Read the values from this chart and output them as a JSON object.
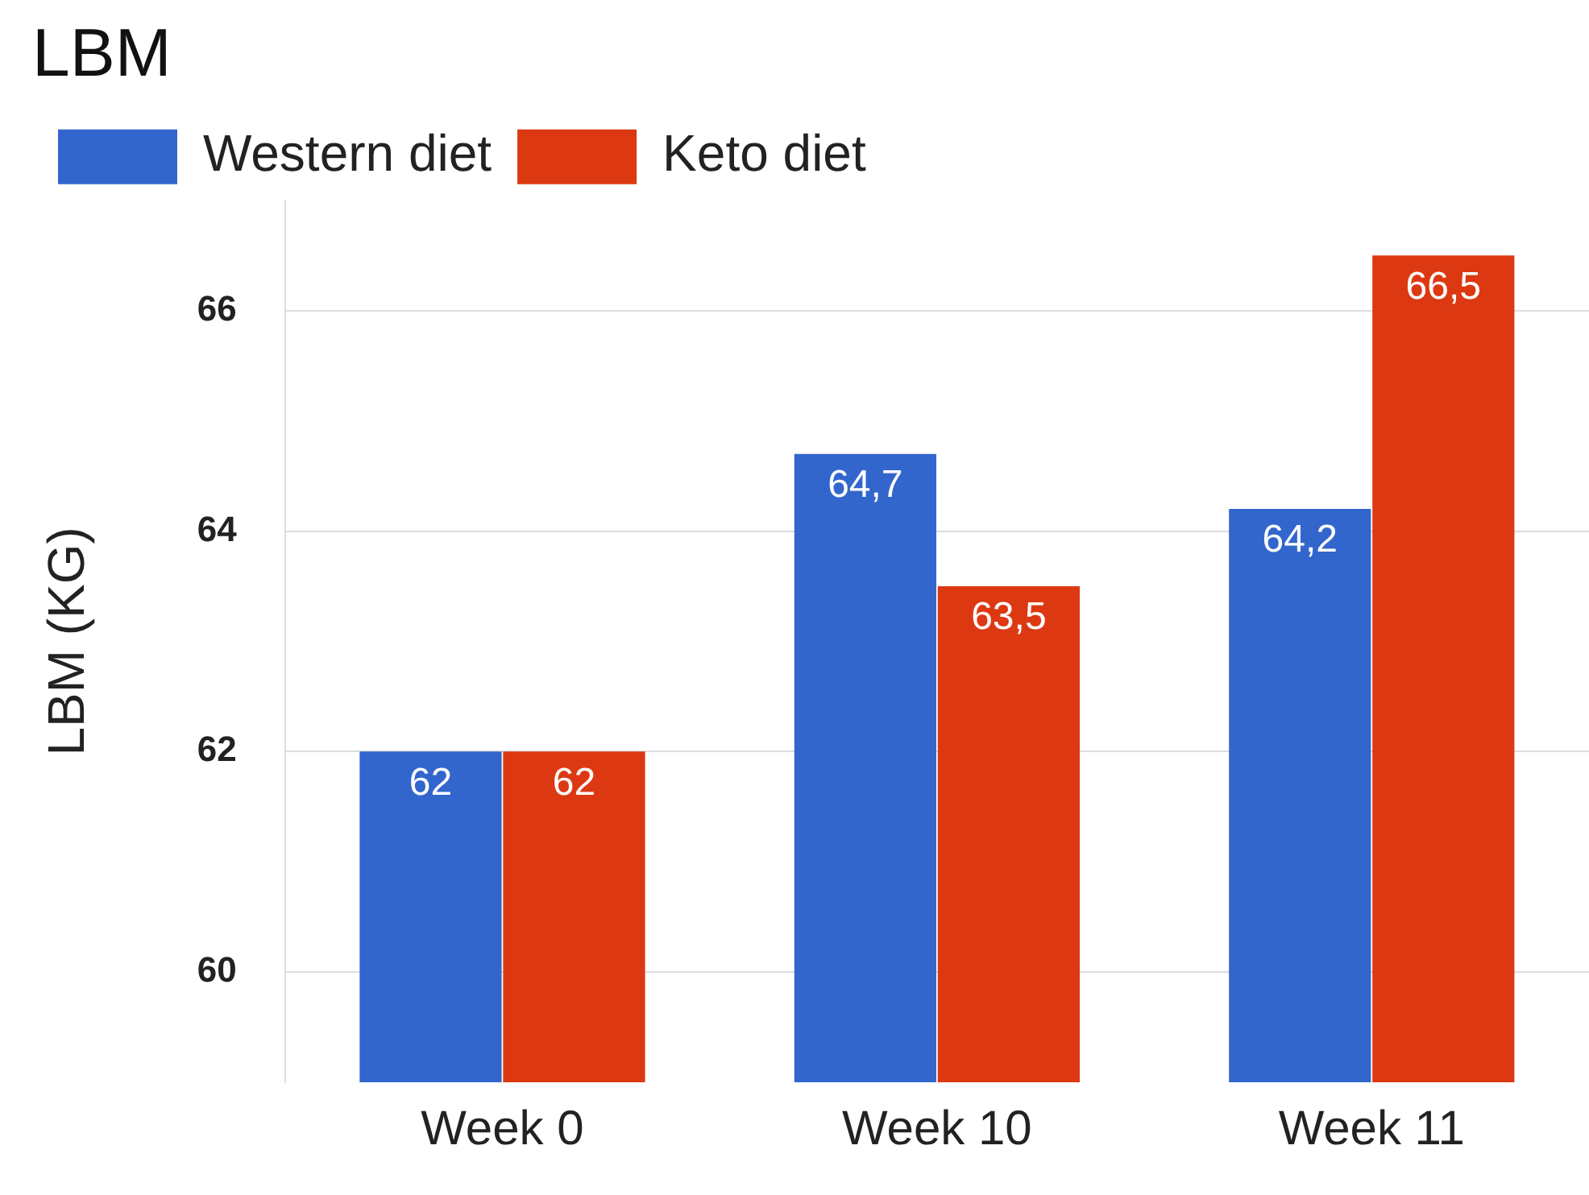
{
  "chart_data": {
    "type": "bar",
    "title": "LBM",
    "ylabel": "LBM (KG)",
    "categories": [
      "Week 0",
      "Week 10",
      "Week 11"
    ],
    "series": [
      {
        "name": "Western diet",
        "color": "#3366cc",
        "values": [
          62,
          64.7,
          64.2
        ],
        "value_labels": [
          "62",
          "64,7",
          "64,2"
        ]
      },
      {
        "name": "Keto diet",
        "color": "#dc3912",
        "values": [
          62,
          63.5,
          66.5
        ],
        "value_labels": [
          "62",
          "63,5",
          "66,5"
        ]
      }
    ],
    "ylim": [
      59,
      67
    ],
    "yticks": [
      60,
      62,
      64,
      66
    ],
    "grid": "y",
    "legend": "top left"
  }
}
